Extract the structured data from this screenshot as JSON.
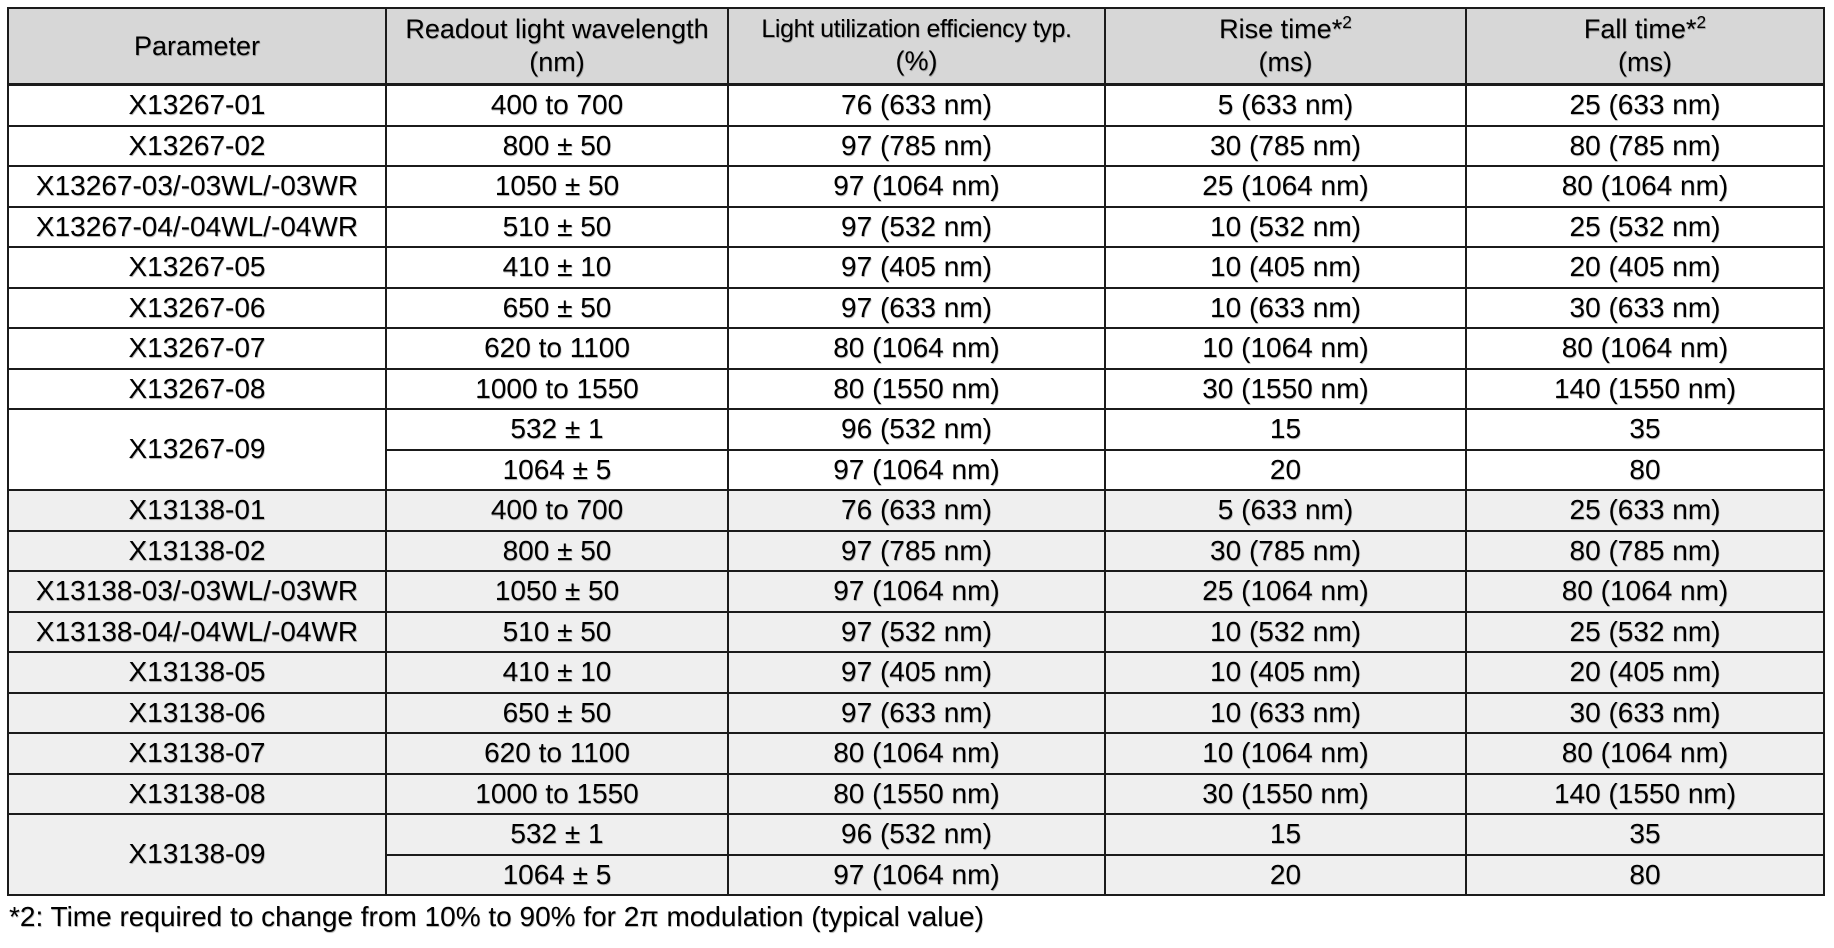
{
  "colors": {
    "header_bg": "#d7d7d7",
    "shaded_row_bg": "#efefef",
    "border": "#1b1b1b",
    "text": "#000000",
    "page_bg": "#ffffff"
  },
  "table": {
    "headers": [
      {
        "line1": "Parameter",
        "sup": "",
        "line2": ""
      },
      {
        "line1": "Readout light wavelength",
        "sup": "",
        "line2": "(nm)"
      },
      {
        "line1": "Light utilization efficiency typ.",
        "sup": "",
        "line2": "(%)"
      },
      {
        "line1": "Rise time*",
        "sup": "2",
        "line2": "(ms)"
      },
      {
        "line1": "Fall time*",
        "sup": "2",
        "line2": "(ms)"
      }
    ],
    "rows": [
      {
        "shade": false,
        "cells": [
          "X13267-01",
          "400 to 700",
          "76 (633 nm)",
          "5 (633 nm)",
          "25 (633 nm)"
        ]
      },
      {
        "shade": false,
        "cells": [
          "X13267-02",
          "800 ± 50",
          "97 (785 nm)",
          "30 (785 nm)",
          "80 (785 nm)"
        ]
      },
      {
        "shade": false,
        "cells": [
          "X13267-03/-03WL/-03WR",
          "1050 ± 50",
          "97 (1064 nm)",
          "25 (1064 nm)",
          "80 (1064 nm)"
        ]
      },
      {
        "shade": false,
        "cells": [
          "X13267-04/-04WL/-04WR",
          "510 ± 50",
          "97 (532 nm)",
          "10 (532 nm)",
          "25 (532 nm)"
        ]
      },
      {
        "shade": false,
        "cells": [
          "X13267-05",
          "410 ± 10",
          "97 (405 nm)",
          "10 (405 nm)",
          "20 (405 nm)"
        ]
      },
      {
        "shade": false,
        "cells": [
          "X13267-06",
          "650 ± 50",
          "97 (633 nm)",
          "10 (633 nm)",
          "30 (633 nm)"
        ]
      },
      {
        "shade": false,
        "cells": [
          "X13267-07",
          "620 to 1100",
          "80 (1064 nm)",
          "10 (1064 nm)",
          "80 (1064 nm)"
        ]
      },
      {
        "shade": false,
        "cells": [
          "X13267-08",
          "1000 to 1550",
          "80 (1550 nm)",
          "30 (1550 nm)",
          "140 (1550 nm)"
        ]
      },
      {
        "shade": false,
        "param_rowspan": 2,
        "cells": [
          "X13267-09",
          "532 ± 1",
          "96 (532 nm)",
          "15",
          "35"
        ]
      },
      {
        "shade": false,
        "continuation": true,
        "cells": [
          "1064 ± 5",
          "97 (1064 nm)",
          "20",
          "80"
        ]
      },
      {
        "shade": true,
        "cells": [
          "X13138-01",
          "400 to 700",
          "76 (633 nm)",
          "5 (633 nm)",
          "25 (633 nm)"
        ]
      },
      {
        "shade": true,
        "cells": [
          "X13138-02",
          "800 ± 50",
          "97 (785 nm)",
          "30 (785 nm)",
          "80 (785 nm)"
        ]
      },
      {
        "shade": true,
        "cells": [
          "X13138-03/-03WL/-03WR",
          "1050 ± 50",
          "97 (1064 nm)",
          "25 (1064 nm)",
          "80 (1064 nm)"
        ]
      },
      {
        "shade": true,
        "cells": [
          "X13138-04/-04WL/-04WR",
          "510 ± 50",
          "97 (532 nm)",
          "10 (532 nm)",
          "25 (532 nm)"
        ]
      },
      {
        "shade": true,
        "cells": [
          "X13138-05",
          "410 ± 10",
          "97 (405 nm)",
          "10 (405 nm)",
          "20 (405 nm)"
        ]
      },
      {
        "shade": true,
        "cells": [
          "X13138-06",
          "650 ± 50",
          "97 (633 nm)",
          "10 (633 nm)",
          "30 (633 nm)"
        ]
      },
      {
        "shade": true,
        "cells": [
          "X13138-07",
          "620 to 1100",
          "80 (1064 nm)",
          "10 (1064 nm)",
          "80 (1064 nm)"
        ]
      },
      {
        "shade": true,
        "cells": [
          "X13138-08",
          "1000 to 1550",
          "80 (1550 nm)",
          "30 (1550 nm)",
          "140 (1550 nm)"
        ]
      },
      {
        "shade": true,
        "param_rowspan": 2,
        "cells": [
          "X13138-09",
          "532 ± 1",
          "96 (532 nm)",
          "15",
          "35"
        ]
      },
      {
        "shade": true,
        "continuation": true,
        "cells": [
          "1064 ± 5",
          "97 (1064 nm)",
          "20",
          "80"
        ]
      }
    ]
  },
  "footnote": "*2: Time required to change from 10% to 90% for 2π modulation (typical value)"
}
